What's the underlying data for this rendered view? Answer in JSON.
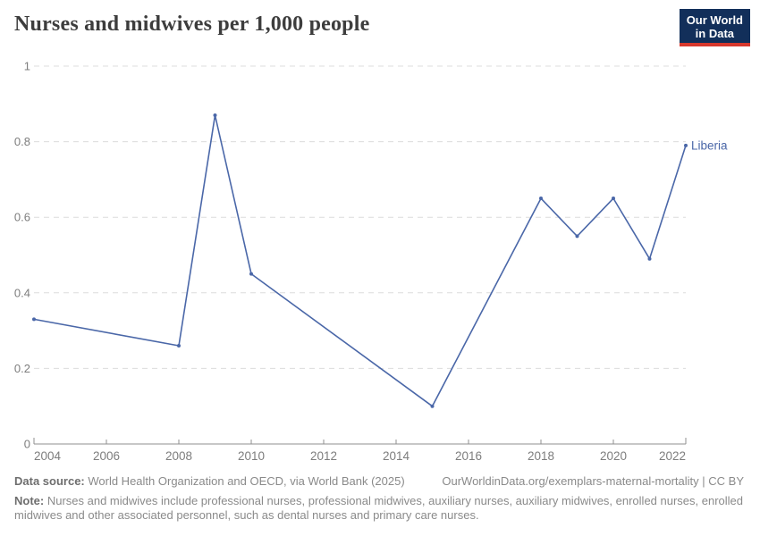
{
  "header": {
    "title": "Nurses and midwives per 1,000 people",
    "logo": {
      "line1": "Our World",
      "line2": "in Data",
      "bg_color": "#122f5a",
      "accent_color": "#d7382d"
    }
  },
  "chart_data": {
    "type": "line",
    "title": "Nurses and midwives per 1,000 people",
    "x": [
      2004,
      2008,
      2009,
      2010,
      2015,
      2018,
      2019,
      2020,
      2021,
      2022
    ],
    "series": [
      {
        "name": "Liberia",
        "values": [
          0.33,
          0.26,
          0.87,
          0.45,
          0.1,
          0.65,
          0.55,
          0.65,
          0.49,
          0.79
        ],
        "color": "#4a67a8"
      }
    ],
    "xlim": [
      2004,
      2022
    ],
    "ylim": [
      0,
      1
    ],
    "x_ticks": [
      2004,
      2006,
      2008,
      2010,
      2012,
      2014,
      2016,
      2018,
      2020,
      2022
    ],
    "x_tick_labels": [
      "2004",
      "2006",
      "2008",
      "2010",
      "2012",
      "2014",
      "2016",
      "2018",
      "2020",
      "2022"
    ],
    "y_ticks": [
      0,
      0.2,
      0.4,
      0.6,
      0.8,
      1
    ],
    "y_tick_labels": [
      "0",
      "0.2",
      "0.4",
      "0.6",
      "0.8",
      "1"
    ],
    "grid": "horizontal-dashed",
    "legend_position": "end-of-line-label",
    "colors": {
      "grid": "#dcdcdc",
      "axis": "#8f8f8f",
      "tick_label": "#7d7d7d"
    }
  },
  "footer": {
    "data_source_label": "Data source:",
    "data_source_text": " World Health Organization and OECD, via World Bank (2025)",
    "link_text": "OurWorldinData.org/exemplars-maternal-mortality | CC BY",
    "note_label": "Note:",
    "note_text": " Nurses and midwives include professional nurses, professional midwives, auxiliary nurses, auxiliary midwives, enrolled nurses, enrolled midwives and other associated personnel, such as dental nurses and primary care nurses."
  }
}
